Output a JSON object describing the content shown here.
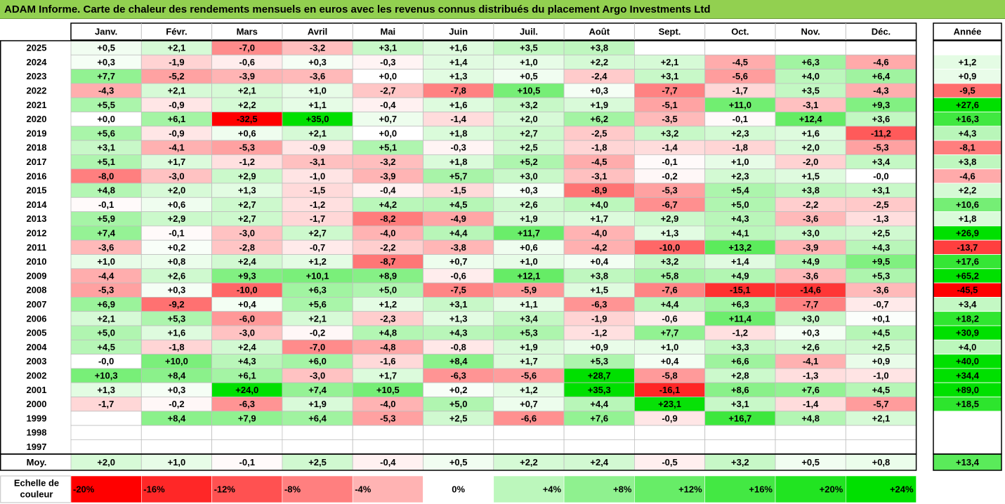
{
  "title": "ADAM Informe. Carte de chaleur des rendements mensuels en euros avec les revenus connus distribués du placement Argo Investments Ltd",
  "chart_data": {
    "type": "heatmap",
    "months": [
      "Janv.",
      "Févr.",
      "Mars",
      "Avril",
      "Mai",
      "Juin",
      "Juil.",
      "Août",
      "Sept.",
      "Oct.",
      "Nov.",
      "Déc."
    ],
    "year_column_label": "Année",
    "rows": [
      {
        "year": "2025",
        "values": [
          "+0,5",
          "+2,1",
          "-7,0",
          "-3,2",
          "+3,1",
          "+1,6",
          "+3,5",
          "+3,8",
          "",
          "",
          "",
          ""
        ],
        "annual": ""
      },
      {
        "year": "2024",
        "values": [
          "+0,3",
          "-1,9",
          "-0,6",
          "+0,3",
          "-0,3",
          "+1,4",
          "+1,0",
          "+2,2",
          "+2,1",
          "-4,5",
          "+6,3",
          "-4,6"
        ],
        "annual": "+1,2"
      },
      {
        "year": "2023",
        "values": [
          "+7,7",
          "-5,2",
          "-3,9",
          "-3,6",
          "+0,0",
          "+1,3",
          "+0,5",
          "-2,4",
          "+3,1",
          "-5,6",
          "+4,0",
          "+6,4"
        ],
        "annual": "+0,9"
      },
      {
        "year": "2022",
        "values": [
          "-4,3",
          "+2,1",
          "+2,1",
          "+1,0",
          "-2,7",
          "-7,8",
          "+10,5",
          "+0,3",
          "-7,7",
          "-1,7",
          "+3,5",
          "-4,3"
        ],
        "annual": "-9,5"
      },
      {
        "year": "2021",
        "values": [
          "+5,5",
          "-0,9",
          "+2,2",
          "+1,1",
          "-0,4",
          "+1,6",
          "+3,2",
          "+1,9",
          "-5,1",
          "+11,0",
          "-3,1",
          "+9,3"
        ],
        "annual": "+27,6"
      },
      {
        "year": "2020",
        "values": [
          "+0,0",
          "+6,1",
          "-32,5",
          "+35,0",
          "+0,7",
          "-1,4",
          "+2,0",
          "+6,2",
          "-3,5",
          "-0,1",
          "+12,4",
          "+3,6"
        ],
        "annual": "+16,3"
      },
      {
        "year": "2019",
        "values": [
          "+5,6",
          "-0,9",
          "+0,6",
          "+2,1",
          "+0,0",
          "+1,8",
          "+2,7",
          "-2,5",
          "+3,2",
          "+2,3",
          "+1,6",
          "-11,2"
        ],
        "annual": "+4,3"
      },
      {
        "year": "2018",
        "values": [
          "+3,1",
          "-4,1",
          "-5,3",
          "-0,9",
          "+5,1",
          "-0,3",
          "+2,5",
          "-1,8",
          "-1,4",
          "-1,8",
          "+2,0",
          "-5,3"
        ],
        "annual": "-8,1"
      },
      {
        "year": "2017",
        "values": [
          "+5,1",
          "+1,7",
          "-1,2",
          "-3,1",
          "-3,2",
          "+1,8",
          "+5,2",
          "-4,5",
          "-0,1",
          "+1,0",
          "-2,0",
          "+3,4"
        ],
        "annual": "+3,8"
      },
      {
        "year": "2016",
        "values": [
          "-8,0",
          "-3,0",
          "+2,9",
          "-1,0",
          "-3,9",
          "+5,7",
          "+3,0",
          "-3,1",
          "-0,2",
          "+2,3",
          "+1,5",
          "-0,0"
        ],
        "annual": "-4,6"
      },
      {
        "year": "2015",
        "values": [
          "+4,8",
          "+2,0",
          "+1,3",
          "-1,5",
          "-0,4",
          "-1,5",
          "+0,3",
          "-8,9",
          "-5,3",
          "+5,4",
          "+3,8",
          "+3,1"
        ],
        "annual": "+2,2"
      },
      {
        "year": "2014",
        "values": [
          "-0,1",
          "+0,6",
          "+2,7",
          "-1,2",
          "+4,2",
          "+4,5",
          "+2,6",
          "+4,0",
          "-6,7",
          "+5,0",
          "-2,2",
          "-2,5"
        ],
        "annual": "+10,6"
      },
      {
        "year": "2013",
        "values": [
          "+5,9",
          "+2,9",
          "+2,7",
          "-1,7",
          "-8,2",
          "-4,9",
          "+1,9",
          "+1,7",
          "+2,9",
          "+4,3",
          "-3,6",
          "-1,3"
        ],
        "annual": "+1,8"
      },
      {
        "year": "2012",
        "values": [
          "+7,4",
          "-0,1",
          "-3,0",
          "+2,7",
          "-4,0",
          "+4,4",
          "+11,7",
          "-4,0",
          "+1,3",
          "+4,1",
          "+3,0",
          "+2,5"
        ],
        "annual": "+26,9"
      },
      {
        "year": "2011",
        "values": [
          "-3,6",
          "+0,2",
          "-2,8",
          "-0,7",
          "-2,2",
          "-3,8",
          "+0,6",
          "-4,2",
          "-10,0",
          "+13,2",
          "-3,9",
          "+4,3"
        ],
        "annual": "-13,7"
      },
      {
        "year": "2010",
        "values": [
          "+1,0",
          "+0,8",
          "+2,4",
          "+1,2",
          "-8,7",
          "+0,7",
          "+1,0",
          "+0,4",
          "+3,2",
          "+1,4",
          "+4,9",
          "+9,5"
        ],
        "annual": "+17,6"
      },
      {
        "year": "2009",
        "values": [
          "-4,4",
          "+2,6",
          "+9,3",
          "+10,1",
          "+8,9",
          "-0,6",
          "+12,1",
          "+3,8",
          "+5,8",
          "+4,9",
          "-3,6",
          "+5,3"
        ],
        "annual": "+65,2"
      },
      {
        "year": "2008",
        "values": [
          "-5,3",
          "+0,3",
          "-10,0",
          "+6,3",
          "+5,0",
          "-7,5",
          "-5,9",
          "+1,5",
          "-7,6",
          "-15,1",
          "-14,6",
          "-3,6"
        ],
        "annual": "-45,5"
      },
      {
        "year": "2007",
        "values": [
          "+6,9",
          "-9,2",
          "+0,4",
          "+5,6",
          "+1,2",
          "+3,1",
          "+1,1",
          "-6,3",
          "+4,4",
          "+6,3",
          "-7,7",
          "-0,7"
        ],
        "annual": "+3,4"
      },
      {
        "year": "2006",
        "values": [
          "+2,1",
          "+5,3",
          "-6,0",
          "+2,1",
          "-2,3",
          "+1,3",
          "+3,4",
          "-1,9",
          "-0,6",
          "+11,4",
          "+3,0",
          "+0,1"
        ],
        "annual": "+18,2"
      },
      {
        "year": "2005",
        "values": [
          "+5,0",
          "+1,6",
          "-3,0",
          "-0,2",
          "+4,8",
          "+4,3",
          "+5,3",
          "-1,2",
          "+7,7",
          "-1,2",
          "+0,3",
          "+4,5"
        ],
        "annual": "+30,9"
      },
      {
        "year": "2004",
        "values": [
          "+4,5",
          "-1,8",
          "+2,4",
          "-7,0",
          "-4,8",
          "-0,8",
          "+1,9",
          "+0,9",
          "+1,0",
          "+3,3",
          "+2,6",
          "+2,5"
        ],
        "annual": "+4,0"
      },
      {
        "year": "2003",
        "values": [
          "-0,0",
          "+10,0",
          "+4,3",
          "+6,0",
          "-1,6",
          "+8,4",
          "+1,7",
          "+5,3",
          "+0,4",
          "+6,6",
          "-4,1",
          "+0,9"
        ],
        "annual": "+40,0"
      },
      {
        "year": "2002",
        "values": [
          "+10,3",
          "+8,4",
          "+6,1",
          "-3,0",
          "+1,7",
          "-6,3",
          "-5,6",
          "+28,7",
          "-5,8",
          "+2,8",
          "-1,3",
          "-1,0"
        ],
        "annual": "+34,4"
      },
      {
        "year": "2001",
        "values": [
          "+1,3",
          "+0,3",
          "+24,0",
          "+7,4",
          "+10,5",
          "+0,2",
          "+1,2",
          "+35,3",
          "-16,1",
          "+8,6",
          "+7,6",
          "+4,5"
        ],
        "annual": "+89,0"
      },
      {
        "year": "2000",
        "values": [
          "-1,7",
          "-0,2",
          "-6,3",
          "+1,9",
          "-4,0",
          "+5,0",
          "+0,7",
          "+4,4",
          "+23,1",
          "+3,1",
          "-1,4",
          "-5,7"
        ],
        "annual": "+18,5"
      },
      {
        "year": "1999",
        "values": [
          "",
          "+8,4",
          "+7,9",
          "+6,4",
          "-5,3",
          "+2,5",
          "-6,6",
          "+7,6",
          "-0,9",
          "+16,7",
          "+4,8",
          "+2,1"
        ],
        "annual": ""
      },
      {
        "year": "1998",
        "values": [
          "",
          "",
          "",
          "",
          "",
          "",
          "",
          "",
          "",
          "",
          "",
          ""
        ],
        "annual": ""
      },
      {
        "year": "1997",
        "values": [
          "",
          "",
          "",
          "",
          "",
          "",
          "",
          "",
          "",
          "",
          "",
          ""
        ],
        "annual": ""
      }
    ],
    "average": {
      "label": "Moy.",
      "values": [
        "+2,0",
        "+1,0",
        "-0,1",
        "+2,5",
        "-0,4",
        "+0,5",
        "+2,2",
        "+2,4",
        "-0,5",
        "+3,2",
        "+0,5",
        "+0,8"
      ],
      "annual": "+13,4"
    },
    "scale": {
      "label_line1": "Echelle de",
      "label_line2": "couleur",
      "steps": [
        {
          "label": "-20%",
          "value": -20
        },
        {
          "label": "-16%",
          "value": -16
        },
        {
          "label": "-12%",
          "value": -12
        },
        {
          "label": "-8%",
          "value": -8
        },
        {
          "label": "-4%",
          "value": -4
        },
        {
          "label": "0%",
          "value": 0
        },
        {
          "label": "+4%",
          "value": 4
        },
        {
          "label": "+8%",
          "value": 8
        },
        {
          "label": "+12%",
          "value": 12
        },
        {
          "label": "+16%",
          "value": 16
        },
        {
          "label": "+20%",
          "value": 20
        },
        {
          "label": "+24%",
          "value": 24
        }
      ]
    },
    "colors": {
      "negative_max": "#ff0000",
      "neutral": "#ffffff",
      "positive_max": "#00e000",
      "grid": "#bfbfbf",
      "title_band": "#92d050"
    }
  }
}
